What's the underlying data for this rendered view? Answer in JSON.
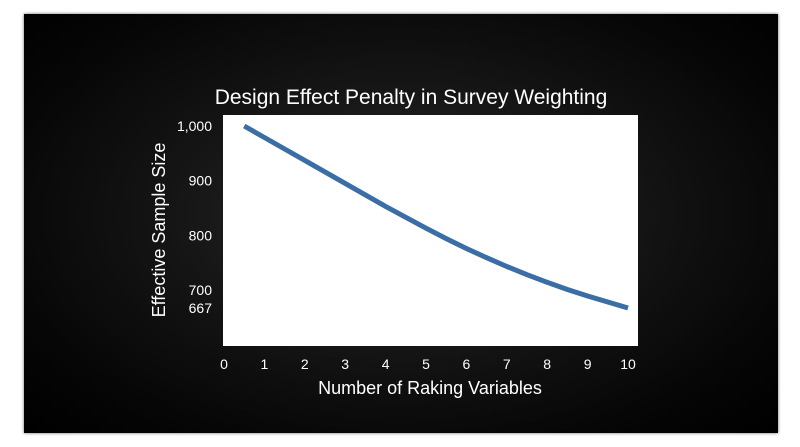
{
  "chart_data": {
    "type": "line",
    "title": "Design Effect Penalty in Survey Weighting",
    "xlabel": "Number of Raking Variables",
    "ylabel": "Effective Sample Size",
    "xlim": [
      0,
      10
    ],
    "ylim": [
      615,
      1025
    ],
    "xticks": [
      0,
      1,
      2,
      3,
      4,
      5,
      6,
      7,
      8,
      9,
      10
    ],
    "xtick_labels": [
      "0",
      "1",
      "2",
      "3",
      "4",
      "5",
      "6",
      "7",
      "8",
      "9",
      "10"
    ],
    "yticks": [
      667,
      700,
      800,
      900,
      1000
    ],
    "ytick_labels": [
      "667",
      "700",
      "800",
      "900",
      "1,000"
    ],
    "grid": false,
    "legend": "none",
    "series": [
      {
        "color": "#3a6ea5",
        "x": [
          0.5,
          1,
          1.5,
          2,
          2.5,
          3,
          3.5,
          4,
          4.5,
          5,
          5.5,
          6,
          6.5,
          7,
          7.5,
          8,
          8.5,
          9,
          9.5,
          10
        ],
        "y": [
          1000,
          979,
          958,
          937,
          916,
          895,
          874,
          853,
          833,
          813,
          794,
          776,
          759,
          743,
          728,
          714,
          701,
          689,
          678,
          667
        ]
      }
    ]
  }
}
